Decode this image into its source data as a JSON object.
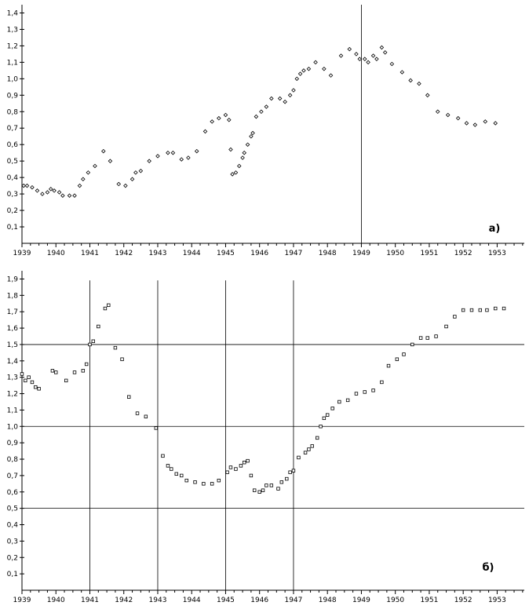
{
  "chart_data": [
    {
      "type": "scatter",
      "panel_label": "a)",
      "title": "",
      "xlabel": "",
      "ylabel": "",
      "xlim": [
        1939,
        1953.8
      ],
      "ylim": [
        0,
        1.45
      ],
      "x_ticks": [
        1939,
        1940,
        1941,
        1942,
        1943,
        1944,
        1945,
        1946,
        1947,
        1948,
        1949,
        1950,
        1951,
        1952,
        1953
      ],
      "x_tick_labels": [
        "1939",
        "1940",
        "1941",
        "1942",
        "1943",
        "1944",
        "1945",
        "1946",
        "1947",
        "1948",
        "1949",
        "1950",
        "1951",
        "1952",
        "1953"
      ],
      "y_ticks": [
        0.1,
        0.2,
        0.3,
        0.4,
        0.5,
        0.6,
        0.7,
        0.8,
        0.9,
        1.0,
        1.1,
        1.2,
        1.3,
        1.4
      ],
      "y_tick_labels": [
        "0,1",
        "0,2",
        "0,3",
        "0,4",
        "0,5",
        "0,6",
        "0,7",
        "0,8",
        "0,9",
        "1,0",
        "1,1",
        "1,2",
        "1,3",
        "1,4"
      ],
      "vlines": [
        1949
      ],
      "hlines": [],
      "marker": "diamond",
      "points": [
        [
          1939.05,
          0.35
        ],
        [
          1939.15,
          0.35
        ],
        [
          1939.3,
          0.34
        ],
        [
          1939.45,
          0.32
        ],
        [
          1939.6,
          0.3
        ],
        [
          1939.75,
          0.31
        ],
        [
          1939.85,
          0.33
        ],
        [
          1939.95,
          0.32
        ],
        [
          1940.1,
          0.31
        ],
        [
          1940.2,
          0.29
        ],
        [
          1940.4,
          0.29
        ],
        [
          1940.55,
          0.29
        ],
        [
          1940.7,
          0.35
        ],
        [
          1940.8,
          0.39
        ],
        [
          1940.95,
          0.43
        ],
        [
          1941.15,
          0.47
        ],
        [
          1941.4,
          0.56
        ],
        [
          1941.6,
          0.5
        ],
        [
          1941.85,
          0.36
        ],
        [
          1942.05,
          0.35
        ],
        [
          1942.25,
          0.39
        ],
        [
          1942.35,
          0.43
        ],
        [
          1942.5,
          0.44
        ],
        [
          1942.75,
          0.5
        ],
        [
          1943.0,
          0.53
        ],
        [
          1943.3,
          0.55
        ],
        [
          1943.45,
          0.55
        ],
        [
          1943.7,
          0.51
        ],
        [
          1943.9,
          0.52
        ],
        [
          1944.15,
          0.56
        ],
        [
          1944.4,
          0.68
        ],
        [
          1944.6,
          0.74
        ],
        [
          1944.8,
          0.76
        ],
        [
          1945.0,
          0.78
        ],
        [
          1945.1,
          0.75
        ],
        [
          1945.15,
          0.57
        ],
        [
          1945.2,
          0.42
        ],
        [
          1945.3,
          0.43
        ],
        [
          1945.4,
          0.47
        ],
        [
          1945.5,
          0.52
        ],
        [
          1945.55,
          0.55
        ],
        [
          1945.65,
          0.6
        ],
        [
          1945.75,
          0.65
        ],
        [
          1945.8,
          0.67
        ],
        [
          1945.9,
          0.77
        ],
        [
          1946.05,
          0.8
        ],
        [
          1946.2,
          0.83
        ],
        [
          1946.35,
          0.88
        ],
        [
          1946.6,
          0.88
        ],
        [
          1946.75,
          0.86
        ],
        [
          1946.9,
          0.9
        ],
        [
          1947.0,
          0.93
        ],
        [
          1947.1,
          1.0
        ],
        [
          1947.2,
          1.03
        ],
        [
          1947.3,
          1.05
        ],
        [
          1947.45,
          1.06
        ],
        [
          1947.65,
          1.1
        ],
        [
          1947.9,
          1.06
        ],
        [
          1948.1,
          1.02
        ],
        [
          1948.4,
          1.14
        ],
        [
          1948.65,
          1.18
        ],
        [
          1948.85,
          1.15
        ],
        [
          1948.95,
          1.12
        ],
        [
          1949.1,
          1.12
        ],
        [
          1949.2,
          1.1
        ],
        [
          1949.35,
          1.14
        ],
        [
          1949.45,
          1.12
        ],
        [
          1949.6,
          1.19
        ],
        [
          1949.7,
          1.16
        ],
        [
          1949.9,
          1.09
        ],
        [
          1950.2,
          1.04
        ],
        [
          1950.45,
          0.99
        ],
        [
          1950.7,
          0.97
        ],
        [
          1950.95,
          0.9
        ],
        [
          1951.25,
          0.8
        ],
        [
          1951.55,
          0.78
        ],
        [
          1951.85,
          0.76
        ],
        [
          1952.1,
          0.73
        ],
        [
          1952.35,
          0.72
        ],
        [
          1952.65,
          0.74
        ],
        [
          1952.95,
          0.73
        ]
      ]
    },
    {
      "type": "scatter",
      "panel_label": "б)",
      "title": "",
      "xlabel": "",
      "ylabel": "",
      "xlim": [
        1939,
        1953.8
      ],
      "ylim": [
        0,
        1.95
      ],
      "x_ticks": [
        1939,
        1940,
        1941,
        1942,
        1943,
        1944,
        1945,
        1946,
        1947,
        1948,
        1949,
        1950,
        1951,
        1952,
        1953
      ],
      "x_tick_labels": [
        "1939",
        "1940",
        "1941",
        "1942",
        "1943",
        "1944",
        "1945",
        "1946",
        "1947",
        "1948",
        "1949",
        "1950",
        "1951",
        "1952",
        "1953"
      ],
      "y_ticks": [
        0.1,
        0.2,
        0.3,
        0.4,
        0.5,
        0.6,
        0.7,
        0.8,
        0.9,
        1.0,
        1.1,
        1.2,
        1.3,
        1.4,
        1.5,
        1.6,
        1.7,
        1.8,
        1.9
      ],
      "y_tick_labels": [
        "0,1",
        "0,2",
        "0,3",
        "0,4",
        "0,5",
        "0,6",
        "0,7",
        "0,8",
        "0,9",
        "1,0",
        "1,1",
        "1,2",
        "1,3",
        "1,4",
        "1,5",
        "1,6",
        "1,7",
        "1,8",
        "1,9"
      ],
      "vlines": [
        1941,
        1943,
        1945,
        1947
      ],
      "hlines": [
        0.5,
        1.0,
        1.5
      ],
      "marker": "square",
      "points": [
        [
          1939.0,
          1.32
        ],
        [
          1939.1,
          1.28
        ],
        [
          1939.2,
          1.3
        ],
        [
          1939.3,
          1.27
        ],
        [
          1939.4,
          1.24
        ],
        [
          1939.5,
          1.23
        ],
        [
          1939.9,
          1.34
        ],
        [
          1940.0,
          1.33
        ],
        [
          1940.3,
          1.28
        ],
        [
          1940.55,
          1.33
        ],
        [
          1940.8,
          1.34
        ],
        [
          1940.9,
          1.38
        ],
        [
          1941.0,
          1.5
        ],
        [
          1941.1,
          1.52
        ],
        [
          1941.25,
          1.61
        ],
        [
          1941.45,
          1.72
        ],
        [
          1941.55,
          1.74
        ],
        [
          1941.75,
          1.48
        ],
        [
          1941.95,
          1.41
        ],
        [
          1942.15,
          1.18
        ],
        [
          1942.4,
          1.08
        ],
        [
          1942.65,
          1.06
        ],
        [
          1942.95,
          0.99
        ],
        [
          1943.15,
          0.82
        ],
        [
          1943.3,
          0.76
        ],
        [
          1943.4,
          0.74
        ],
        [
          1943.55,
          0.71
        ],
        [
          1943.7,
          0.7
        ],
        [
          1943.85,
          0.67
        ],
        [
          1944.1,
          0.66
        ],
        [
          1944.35,
          0.65
        ],
        [
          1944.6,
          0.65
        ],
        [
          1944.8,
          0.67
        ],
        [
          1945.05,
          0.72
        ],
        [
          1945.15,
          0.75
        ],
        [
          1945.3,
          0.74
        ],
        [
          1945.45,
          0.76
        ],
        [
          1945.55,
          0.78
        ],
        [
          1945.65,
          0.79
        ],
        [
          1945.75,
          0.7
        ],
        [
          1945.85,
          0.61
        ],
        [
          1946.0,
          0.6
        ],
        [
          1946.1,
          0.61
        ],
        [
          1946.2,
          0.64
        ],
        [
          1946.35,
          0.64
        ],
        [
          1946.55,
          0.62
        ],
        [
          1946.65,
          0.66
        ],
        [
          1946.8,
          0.68
        ],
        [
          1946.9,
          0.72
        ],
        [
          1947.0,
          0.73
        ],
        [
          1947.15,
          0.81
        ],
        [
          1947.35,
          0.84
        ],
        [
          1947.45,
          0.86
        ],
        [
          1947.55,
          0.88
        ],
        [
          1947.7,
          0.93
        ],
        [
          1947.8,
          1.0
        ],
        [
          1947.9,
          1.05
        ],
        [
          1948.0,
          1.07
        ],
        [
          1948.15,
          1.11
        ],
        [
          1948.35,
          1.15
        ],
        [
          1948.6,
          1.16
        ],
        [
          1948.85,
          1.2
        ],
        [
          1949.1,
          1.21
        ],
        [
          1949.35,
          1.22
        ],
        [
          1949.6,
          1.27
        ],
        [
          1949.8,
          1.37
        ],
        [
          1950.05,
          1.41
        ],
        [
          1950.25,
          1.44
        ],
        [
          1950.5,
          1.5
        ],
        [
          1950.75,
          1.54
        ],
        [
          1950.95,
          1.54
        ],
        [
          1951.2,
          1.55
        ],
        [
          1951.5,
          1.61
        ],
        [
          1951.75,
          1.67
        ],
        [
          1952.0,
          1.71
        ],
        [
          1952.25,
          1.71
        ],
        [
          1952.5,
          1.71
        ],
        [
          1952.7,
          1.71
        ],
        [
          1952.95,
          1.72
        ],
        [
          1953.2,
          1.72
        ]
      ]
    }
  ]
}
